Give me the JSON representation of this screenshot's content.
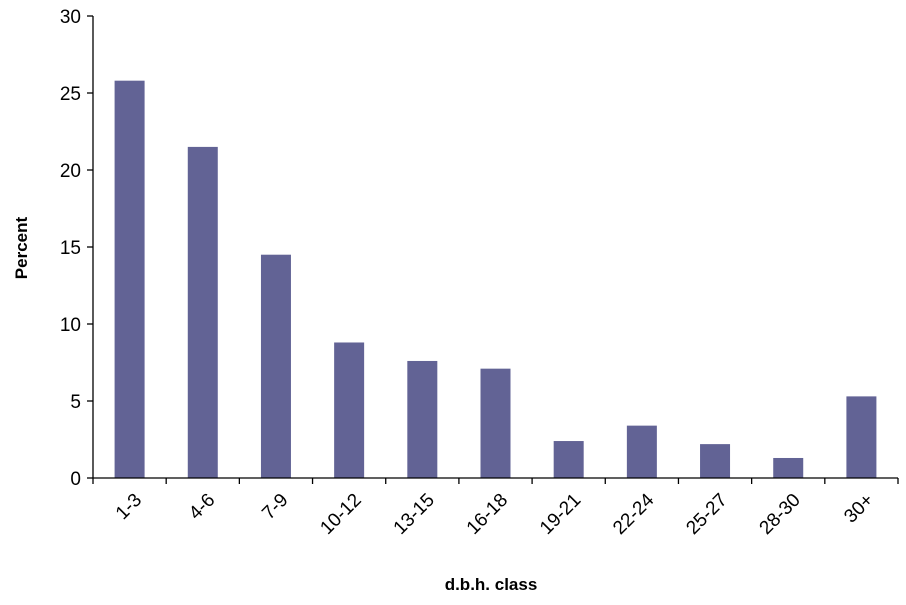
{
  "chart_data": {
    "type": "bar",
    "title": "",
    "xlabel": "d.b.h. class",
    "ylabel": "Percent",
    "categories": [
      "1-3",
      "4-6",
      "7-9",
      "10-12",
      "13-15",
      "16-18",
      "19-21",
      "22-24",
      "25-27",
      "28-30",
      "30+"
    ],
    "values": [
      25.8,
      21.5,
      14.5,
      8.8,
      7.6,
      7.1,
      2.4,
      3.4,
      2.2,
      1.3,
      5.3
    ],
    "ylim": [
      0,
      30
    ],
    "yticks": [
      "0",
      "5",
      "10",
      "15",
      "20",
      "25",
      "30"
    ],
    "grid": false,
    "legend": "none",
    "bar_color": "#626395",
    "axis_color": "#000000"
  }
}
